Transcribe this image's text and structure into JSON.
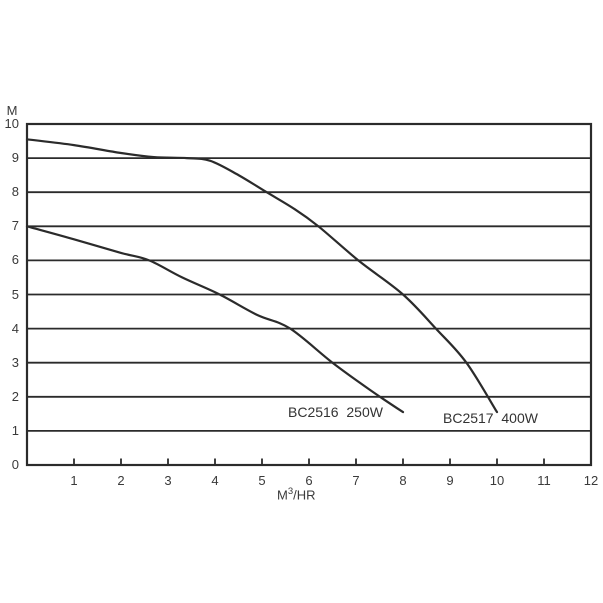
{
  "colors": {
    "line": "#2b2b2b",
    "text": "#3a3a3a"
  },
  "chart_data": {
    "type": "line",
    "title": "",
    "grid": "horizontal",
    "legend_position": "inline-annotations",
    "x_axis": {
      "label": {
        "base": "M",
        "sup": "3",
        "rest": "/HR"
      },
      "min": 0,
      "max": 12,
      "ticks": [
        1,
        2,
        3,
        4,
        5,
        6,
        7,
        8,
        9,
        10,
        11,
        12
      ]
    },
    "y_axis": {
      "label": "M",
      "min": 0,
      "max": 10,
      "ticks": [
        0,
        1,
        2,
        3,
        4,
        5,
        6,
        7,
        8,
        9,
        10
      ]
    },
    "xlim": [
      0,
      12
    ],
    "ylim": [
      0,
      10
    ],
    "series": [
      {
        "name": "BC2516 250W",
        "annotation": "BC2516  250W",
        "points": [
          [
            0,
            7.0
          ],
          [
            1,
            6.62
          ],
          [
            2,
            6.22
          ],
          [
            2.6,
            6.0
          ],
          [
            3.3,
            5.5
          ],
          [
            4.1,
            5.0
          ],
          [
            4.9,
            4.4
          ],
          [
            5.6,
            4.0
          ],
          [
            6.5,
            3.0
          ],
          [
            7.3,
            2.2
          ],
          [
            8.0,
            1.55
          ]
        ]
      },
      {
        "name": "BC2517 400W",
        "annotation": "BC2517  400W",
        "points": [
          [
            0,
            9.55
          ],
          [
            1,
            9.38
          ],
          [
            2,
            9.15
          ],
          [
            2.7,
            9.03
          ],
          [
            3.4,
            9.0
          ],
          [
            3.9,
            8.92
          ],
          [
            4.5,
            8.5
          ],
          [
            5.1,
            8.0
          ],
          [
            5.7,
            7.5
          ],
          [
            6.2,
            7.0
          ],
          [
            7.05,
            6.0
          ],
          [
            8.0,
            5.0
          ],
          [
            8.7,
            4.0
          ],
          [
            9.35,
            3.0
          ],
          [
            10.0,
            1.55
          ]
        ]
      }
    ]
  }
}
